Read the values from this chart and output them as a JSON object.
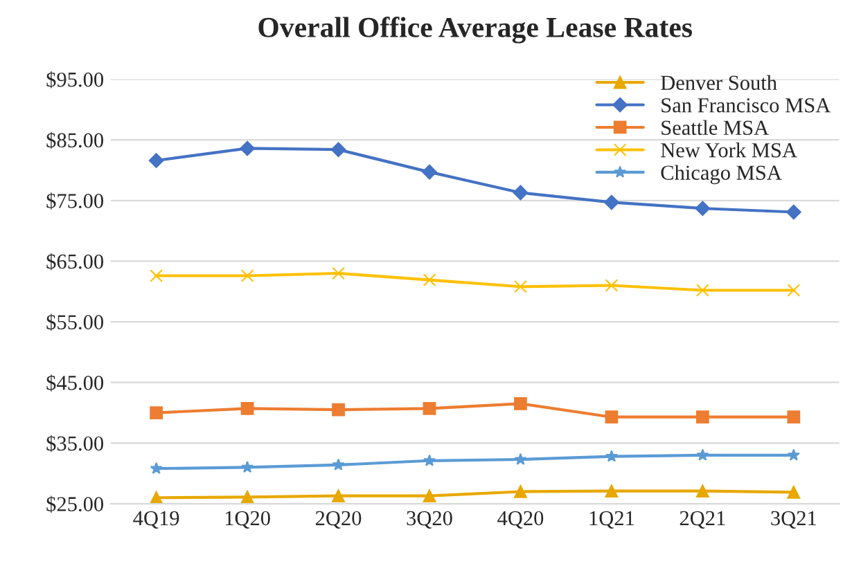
{
  "chart_data": {
    "type": "line",
    "title": "Overall Office Average Lease Rates",
    "categories": [
      "4Q19",
      "1Q20",
      "2Q20",
      "3Q20",
      "4Q20",
      "1Q21",
      "2Q21",
      "3Q21"
    ],
    "series": [
      {
        "name": "Denver South",
        "color": "#e8a800",
        "marker": "triangle",
        "values": [
          26.0,
          26.1,
          26.3,
          26.3,
          27.0,
          27.1,
          27.1,
          26.9
        ]
      },
      {
        "name": "San Francisco MSA",
        "color": "#4472c4",
        "marker": "diamond",
        "values": [
          81.6,
          83.6,
          83.4,
          79.7,
          76.3,
          74.7,
          73.7,
          73.1
        ]
      },
      {
        "name": "Seattle MSA",
        "color": "#ed7d31",
        "marker": "square",
        "values": [
          40.0,
          40.7,
          40.5,
          40.7,
          41.5,
          39.3,
          39.3,
          39.3
        ]
      },
      {
        "name": "New York MSA",
        "color": "#ffc000",
        "marker": "cross",
        "values": [
          62.6,
          62.6,
          63.0,
          61.9,
          60.8,
          61.0,
          60.2,
          60.2
        ]
      },
      {
        "name": "Chicago MSA",
        "color": "#5b9bd5",
        "marker": "star",
        "values": [
          30.8,
          31.0,
          31.4,
          32.1,
          32.3,
          32.8,
          33.0,
          33.0
        ]
      }
    ],
    "ylim": [
      25,
      95
    ],
    "yticks": [
      {
        "value": 25,
        "label": "$25.00"
      },
      {
        "value": 35,
        "label": "$35.00"
      },
      {
        "value": 45,
        "label": "$45.00"
      },
      {
        "value": 55,
        "label": "$55.00"
      },
      {
        "value": 65,
        "label": "$65.00"
      },
      {
        "value": 75,
        "label": "$75.00"
      },
      {
        "value": 85,
        "label": "$85.00"
      },
      {
        "value": 95,
        "label": "$95.00"
      }
    ],
    "grid": "y",
    "legend": "top right",
    "line_style": "solid"
  }
}
